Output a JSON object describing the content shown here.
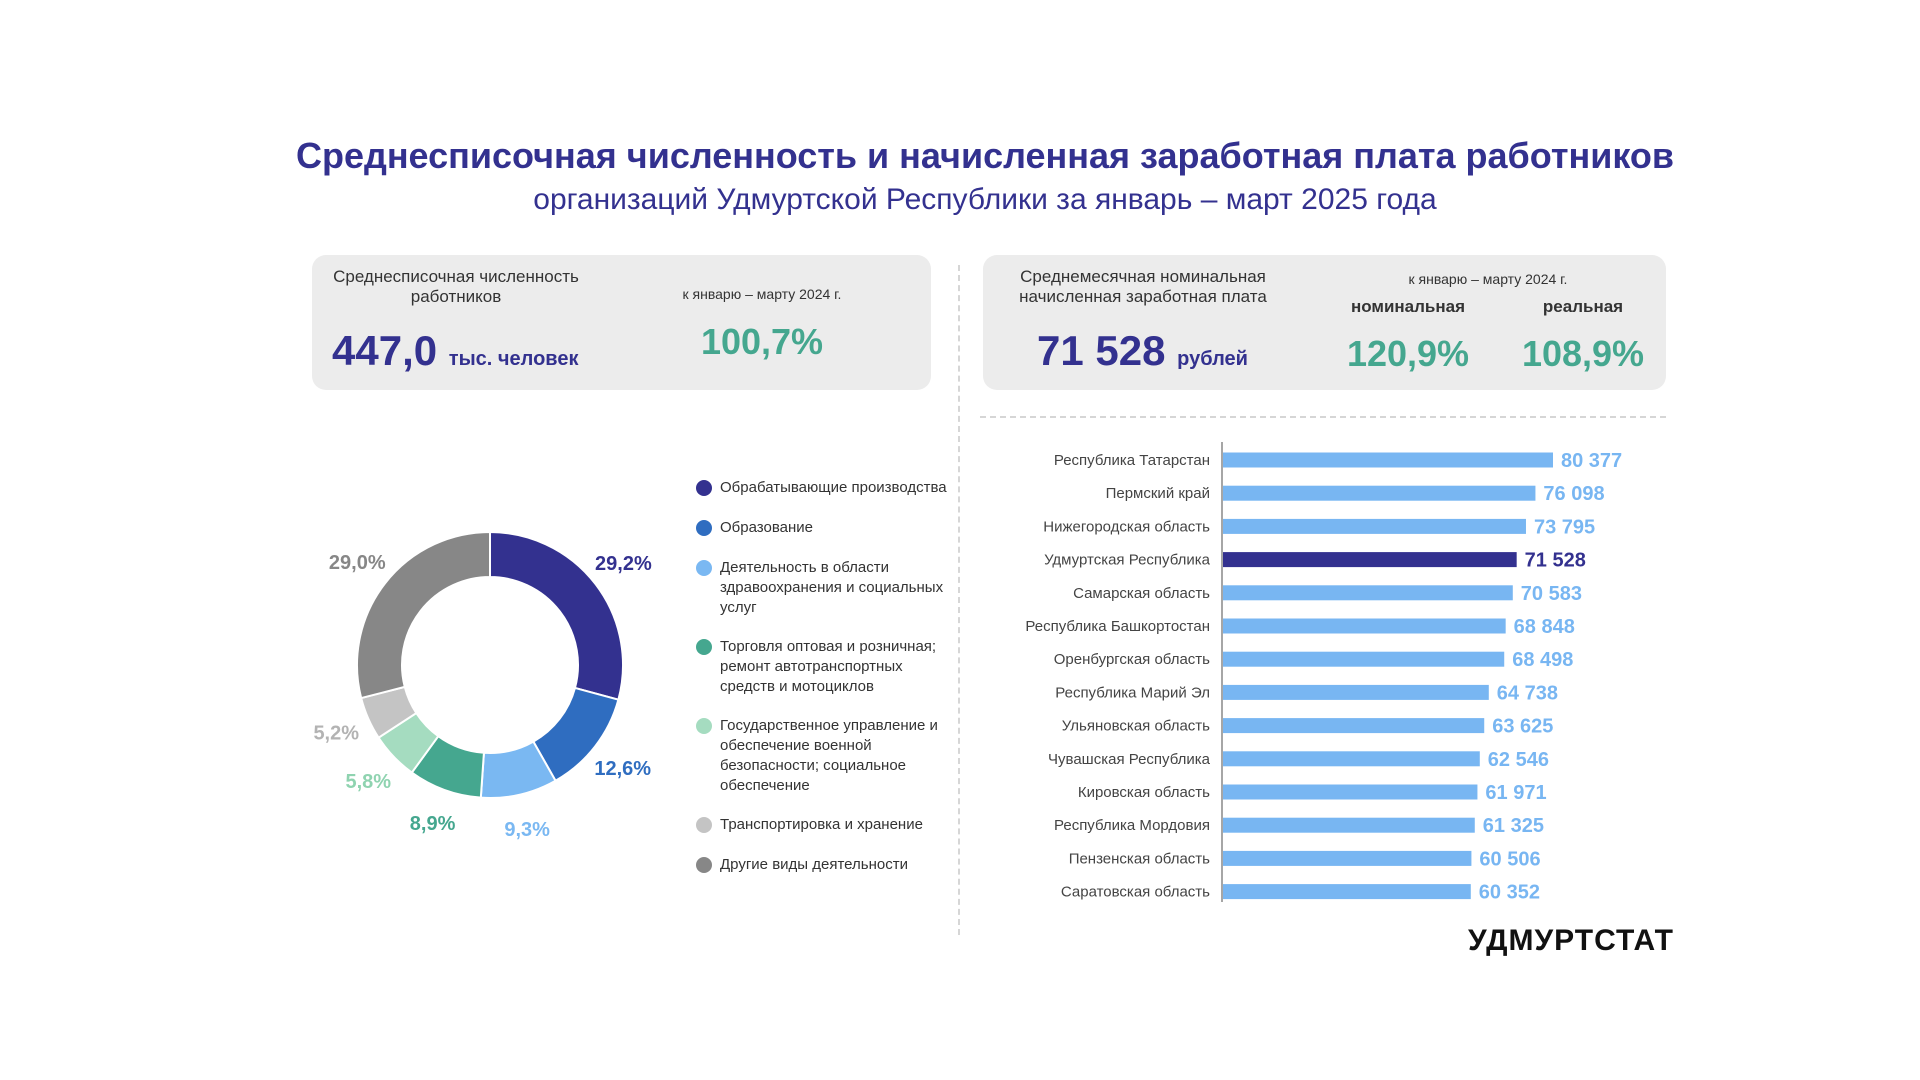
{
  "title": "Среднесписочная численность и начисленная заработная плата работников",
  "subtitle": "организаций Удмуртской Республики за январь – март 2025 года",
  "card_headcount": {
    "label": "Среднесписочная численность работников",
    "value": "447,0",
    "unit": "тыс. человек",
    "compare_label": "к январю – марту 2024 г.",
    "compare_value": "100,7%"
  },
  "card_salary": {
    "label": "Среднемесячная номинальная начисленная заработная плата",
    "value": "71 528",
    "unit": "рублей",
    "compare_label": "к январю – марту 2024 г.",
    "nominal_label": "номинальная",
    "nominal_value": "120,9%",
    "real_label": "реальная",
    "real_value": "108,9%"
  },
  "brand": "УДМУРТСТАТ",
  "chart_data": [
    {
      "type": "pie",
      "variant": "donut",
      "categories": [
        "Обрабатывающие производства",
        "Образование",
        "Деятельность в области здравоохранения и социальных услуг",
        "Торговля оптовая и розничная; ремонт автотранспортных средств и мотоциклов",
        "Государственное управление и обеспечение военной безопасности; социальное обеспечение",
        "Транспортировка и хранение",
        "Другие виды деятельности"
      ],
      "values": [
        29.2,
        12.6,
        9.3,
        8.9,
        5.8,
        5.2,
        29.0
      ],
      "data_labels": [
        "29,2%",
        "12,6%",
        "9,3%",
        "8,9%",
        "5,8%",
        "5,2%",
        "29,0%"
      ],
      "colors": [
        "#33318f",
        "#2f6dc0",
        "#7ab8f2",
        "#45a78f",
        "#a5dcc0",
        "#c4c4c4",
        "#878787"
      ],
      "legend_position": "right"
    },
    {
      "type": "bar",
      "orientation": "horizontal",
      "categories": [
        "Республика Татарстан",
        "Пермский край",
        "Нижегородская область",
        "Удмуртская Республика",
        "Самарская область",
        "Республика Башкортостан",
        "Оренбургская область",
        "Республика Марий Эл",
        "Ульяновская область",
        "Чувашская Республика",
        "Кировская область",
        "Республика Мордовия",
        "Пензенская область",
        "Саратовская область"
      ],
      "values": [
        80377,
        76098,
        73795,
        71528,
        70583,
        68848,
        68498,
        64738,
        63625,
        62546,
        61971,
        61325,
        60506,
        60352
      ],
      "data_labels": [
        "80 377",
        "76 098",
        "73 795",
        "71 528",
        "70 583",
        "68 848",
        "68 498",
        "64 738",
        "63 625",
        "62 546",
        "61 971",
        "61 325",
        "60 506",
        "60 352"
      ],
      "highlight": "Удмуртская Республика",
      "bar_color": "#78b6f2",
      "highlight_color": "#33318f",
      "xlim": [
        0,
        80377
      ],
      "grid": false
    }
  ]
}
